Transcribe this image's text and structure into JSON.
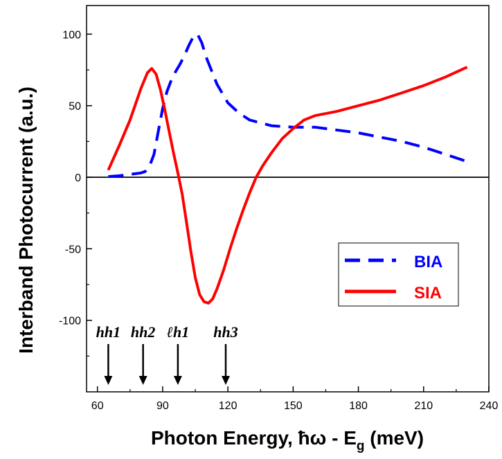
{
  "chart_data": {
    "type": "line",
    "xlabel_main": "Photon Energy, ",
    "xlabel_hbar": "ħω",
    "xlabel_mid": " - E",
    "xlabel_sub": "g",
    "xlabel_end": " (meV)",
    "ylabel": "Interband Photocurrent (a.u.)",
    "xlim": [
      55,
      240
    ],
    "ylim": [
      -150,
      120
    ],
    "x_ticks": [
      60,
      90,
      120,
      150,
      180,
      210,
      240
    ],
    "y_ticks": [
      -100,
      -50,
      0,
      50,
      100
    ],
    "zero_line": true,
    "grid": false,
    "legend_position": "bottom-right",
    "series": [
      {
        "name": "BIA",
        "color": "#0000ff",
        "style": "dashed",
        "x": [
          65,
          70,
          75,
          80,
          82,
          84,
          86,
          88,
          90,
          92,
          94,
          96,
          98,
          100,
          102,
          104,
          106,
          108,
          110,
          115,
          120,
          125,
          130,
          140,
          150,
          160,
          170,
          180,
          190,
          200,
          210,
          220,
          230
        ],
        "y": [
          0.5,
          1,
          2,
          3,
          4,
          8,
          16,
          32,
          48,
          60,
          68,
          74,
          79,
          85,
          92,
          98,
          100,
          94,
          84,
          65,
          52,
          45,
          40,
          36,
          35,
          35,
          33,
          31,
          28,
          25,
          21,
          16,
          11
        ]
      },
      {
        "name": "SIA",
        "color": "#ff0000",
        "style": "solid",
        "x": [
          65,
          70,
          75,
          80,
          83,
          85,
          87,
          89,
          91,
          93,
          95,
          97,
          99,
          101,
          103,
          105,
          107,
          109,
          111,
          113,
          115,
          118,
          121,
          124,
          127,
          130,
          133,
          136,
          140,
          145,
          150,
          155,
          160,
          170,
          180,
          190,
          200,
          210,
          220,
          230
        ],
        "y": [
          5,
          22,
          40,
          62,
          73,
          76,
          72,
          61,
          47,
          32,
          17,
          3,
          -12,
          -32,
          -52,
          -70,
          -82,
          -87,
          -88,
          -85,
          -78,
          -65,
          -50,
          -36,
          -23,
          -11,
          0,
          8,
          17,
          27,
          34,
          40,
          43,
          46,
          50,
          54,
          59,
          64,
          70,
          77
        ]
      }
    ],
    "annotations": [
      {
        "label": "hh1",
        "x": 65
      },
      {
        "label": "hh2",
        "x": 81
      },
      {
        "label": "ℓh1",
        "x": 97
      },
      {
        "label": "hh3",
        "x": 119
      }
    ]
  }
}
